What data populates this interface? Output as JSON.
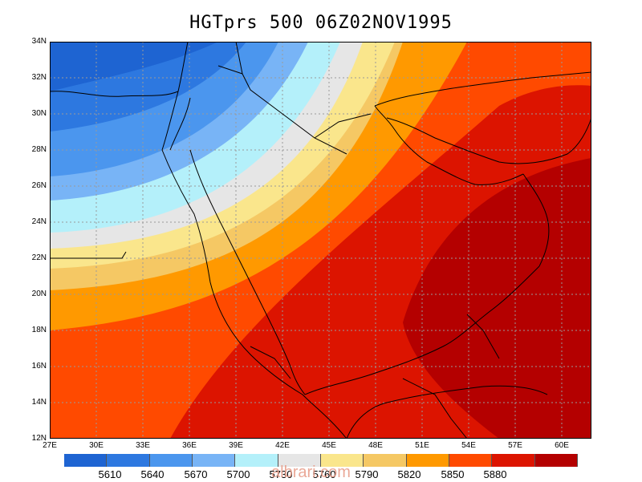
{
  "title": "HGTprs 500 06Z02NOV1995",
  "watermark": "albrari.com",
  "lat_labels": [
    "34N",
    "32N",
    "30N",
    "28N",
    "26N",
    "24N",
    "22N",
    "20N",
    "18N",
    "16N",
    "14N",
    "12N"
  ],
  "lon_labels": [
    "27E",
    "30E",
    "33E",
    "36E",
    "39E",
    "42E",
    "45E",
    "48E",
    "51E",
    "54E",
    "57E",
    "60E"
  ],
  "legend": {
    "colors": [
      "#1e64d2",
      "#2d78e0",
      "#4b96ee",
      "#78b4f6",
      "#b4f0fa",
      "#e6e6e6",
      "#fae68c",
      "#f5c864",
      "#ff9900",
      "#ff4a00",
      "#dc1400",
      "#b40000"
    ],
    "labels": [
      "5610",
      "5640",
      "5670",
      "5700",
      "5730",
      "5760",
      "5790",
      "5820",
      "5850",
      "5880"
    ]
  }
}
